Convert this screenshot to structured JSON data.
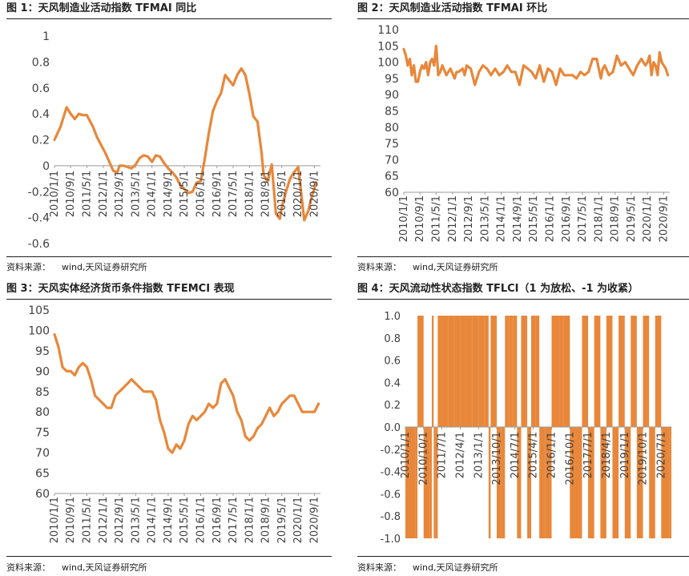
{
  "source_label": "资料来源：",
  "source_text": "wind,天风证券研究所",
  "colors": {
    "series": "#E8873A",
    "axis": "#999999",
    "tick_text": "#404040"
  },
  "chart_data": [
    {
      "id": "fig1",
      "type": "line",
      "title": "图 1：天风制造业活动指数 TFMAI 同比",
      "ylim": [
        -0.6,
        1
      ],
      "yticks": [
        -0.6,
        -0.4,
        -0.2,
        0,
        0.2,
        0.4,
        0.6,
        0.8,
        1
      ],
      "ytick_labels": [
        "-0.6",
        "-0.4",
        "-0.2",
        "0",
        "0.2",
        "0.4",
        "0.6",
        "0.8",
        "1"
      ],
      "xlim": [
        "2010-01-01",
        "2020-11-30"
      ],
      "xticks": [
        "2010/1/1",
        "2010/9/1",
        "2011/5/1",
        "2012/1/1",
        "2012/9/1",
        "2013/5/1",
        "2014/1/1",
        "2014/9/1",
        "2015/5/1",
        "2016/1/1",
        "2016/9/1",
        "2017/5/1",
        "2018/1/1",
        "2018/9/1",
        "2019/5/1",
        "2020/1/1",
        "2020/9/1"
      ],
      "x_axis_at_zero": true,
      "series": [
        {
          "x": [
            "2010-01",
            "2010-04",
            "2010-07",
            "2010-09",
            "2010-11",
            "2011-01",
            "2011-03",
            "2011-05",
            "2011-08",
            "2011-10",
            "2011-12",
            "2012-02",
            "2012-04",
            "2012-06",
            "2012-08",
            "2012-09",
            "2012-11",
            "2013-01",
            "2013-03",
            "2013-05",
            "2013-07",
            "2013-09",
            "2013-11",
            "2014-01",
            "2014-03",
            "2014-05",
            "2014-07",
            "2014-09",
            "2014-11",
            "2015-01",
            "2015-03",
            "2015-05",
            "2015-07",
            "2015-09",
            "2015-11",
            "2016-01",
            "2016-03",
            "2016-05",
            "2016-07",
            "2016-09",
            "2016-11",
            "2017-01",
            "2017-03",
            "2017-05",
            "2017-07",
            "2017-09",
            "2017-11",
            "2018-01",
            "2018-03",
            "2018-05",
            "2018-07",
            "2018-08",
            "2018-10",
            "2018-12",
            "2019-02",
            "2019-04",
            "2019-05",
            "2019-07",
            "2019-09",
            "2019-11",
            "2020-01",
            "2020-02",
            "2020-04",
            "2020-06",
            "2020-08",
            "2020-10"
          ],
          "y": [
            0.2,
            0.3,
            0.45,
            0.4,
            0.36,
            0.4,
            0.39,
            0.39,
            0.3,
            0.22,
            0.16,
            0.1,
            0.03,
            -0.04,
            -0.05,
            0,
            0,
            -0.01,
            -0.02,
            0.01,
            0.06,
            0.08,
            0.07,
            0.03,
            0.08,
            0.07,
            0.02,
            -0.02,
            -0.05,
            -0.09,
            -0.15,
            -0.18,
            -0.21,
            -0.2,
            -0.13,
            -0.12,
            0.05,
            0.25,
            0.42,
            0.5,
            0.56,
            0.7,
            0.66,
            0.62,
            0.7,
            0.75,
            0.7,
            0.55,
            0.38,
            0.34,
            0.1,
            -0.07,
            -0.12,
            0.01,
            -0.37,
            -0.41,
            -0.32,
            -0.2,
            -0.1,
            -0.05,
            -0.01,
            -0.15,
            -0.42,
            -0.35,
            -0.22,
            -0.13
          ]
        }
      ]
    },
    {
      "id": "fig2",
      "type": "line",
      "title": "图 2：天风制造业活动指数 TFMAI 环比",
      "ylim": [
        60,
        110
      ],
      "yticks": [
        60,
        65,
        70,
        75,
        80,
        85,
        90,
        95,
        100,
        105,
        110
      ],
      "ytick_labels": [
        "60",
        "65",
        "70",
        "75",
        "80",
        "85",
        "90",
        "95",
        "100",
        "105",
        "110"
      ],
      "xlim": [
        "2010-01-01",
        "2020-11-30"
      ],
      "xticks": [
        "2010/1/1",
        "2010/9/1",
        "2011/5/1",
        "2012/1/1",
        "2012/9/1",
        "2013/5/1",
        "2014/1/1",
        "2014/9/1",
        "2015/5/1",
        "2016/1/1",
        "2016/9/1",
        "2017/5/1",
        "2018/1/1",
        "2018/9/1",
        "2019/5/1",
        "2020/1/1",
        "2020/9/1"
      ],
      "series": [
        {
          "x": [
            "2010-01",
            "2010-02",
            "2010-03",
            "2010-04",
            "2010-05",
            "2010-06",
            "2010-07",
            "2010-08",
            "2010-09",
            "2010-10",
            "2010-11",
            "2010-12",
            "2011-01",
            "2011-02",
            "2011-03",
            "2011-04",
            "2011-05",
            "2011-06",
            "2011-07",
            "2011-08",
            "2011-10",
            "2011-12",
            "2012-02",
            "2012-03",
            "2012-04",
            "2012-06",
            "2012-07",
            "2012-08",
            "2012-10",
            "2012-12",
            "2013-02",
            "2013-04",
            "2013-06",
            "2013-08",
            "2013-10",
            "2013-12",
            "2014-02",
            "2014-04",
            "2014-06",
            "2014-08",
            "2014-10",
            "2014-12",
            "2015-02",
            "2015-04",
            "2015-06",
            "2015-08",
            "2015-10",
            "2015-12",
            "2016-02",
            "2016-04",
            "2016-06",
            "2016-08",
            "2016-10",
            "2016-12",
            "2017-02",
            "2017-04",
            "2017-06",
            "2017-08",
            "2017-10",
            "2017-12",
            "2018-02",
            "2018-03",
            "2018-04",
            "2018-06",
            "2018-08",
            "2018-10",
            "2018-12",
            "2019-02",
            "2019-04",
            "2019-06",
            "2019-08",
            "2019-10",
            "2019-12",
            "2020-01",
            "2020-02",
            "2020-03",
            "2020-04",
            "2020-05",
            "2020-06",
            "2020-07",
            "2020-08",
            "2020-09",
            "2020-10",
            "2020-11"
          ],
          "y": [
            104,
            102,
            99,
            101,
            96,
            99,
            94,
            94,
            97,
            99,
            98,
            100,
            96,
            100,
            101,
            99,
            105,
            96,
            97,
            99,
            96,
            98,
            95,
            97,
            97,
            98,
            96,
            99,
            98,
            93,
            97,
            99,
            98,
            96,
            98,
            96,
            97,
            99,
            97,
            97,
            93,
            99,
            98,
            97,
            95,
            99,
            94,
            98,
            97,
            93,
            98,
            96,
            96,
            96,
            95,
            97,
            96,
            97,
            101,
            101,
            95,
            98,
            99,
            96,
            97,
            102,
            99,
            100,
            98,
            96,
            99,
            101,
            99,
            100,
            102,
            96,
            100,
            99,
            96,
            103,
            100,
            99,
            98,
            96
          ]
        }
      ]
    },
    {
      "id": "fig3",
      "type": "line",
      "title": "图 3：天风实体经济货币条件指数 TFEMCI 表现",
      "ylim": [
        60,
        105
      ],
      "yticks": [
        60,
        65,
        70,
        75,
        80,
        85,
        90,
        95,
        100,
        105
      ],
      "ytick_labels": [
        "60",
        "65",
        "70",
        "75",
        "80",
        "85",
        "90",
        "95",
        "100",
        "105"
      ],
      "xlim": [
        "2010-01-01",
        "2020-11-30"
      ],
      "xticks": [
        "2010/1/1",
        "2010/9/1",
        "2011/5/1",
        "2012/1/1",
        "2012/9/1",
        "2013/5/1",
        "2014/1/1",
        "2014/9/1",
        "2015/5/1",
        "2016/1/1",
        "2016/9/1",
        "2017/5/1",
        "2018/1/1",
        "2018/9/1",
        "2019/5/1",
        "2020/1/1",
        "2020/9/1"
      ],
      "series": [
        {
          "x": [
            "2010-01",
            "2010-03",
            "2010-05",
            "2010-07",
            "2010-09",
            "2010-11",
            "2011-01",
            "2011-03",
            "2011-05",
            "2011-07",
            "2011-09",
            "2011-11",
            "2012-01",
            "2012-03",
            "2012-05",
            "2012-07",
            "2012-09",
            "2012-11",
            "2013-01",
            "2013-03",
            "2013-05",
            "2013-07",
            "2013-09",
            "2013-11",
            "2014-01",
            "2014-03",
            "2014-05",
            "2014-07",
            "2014-09",
            "2014-11",
            "2015-01",
            "2015-03",
            "2015-05",
            "2015-07",
            "2015-09",
            "2015-11",
            "2016-01",
            "2016-03",
            "2016-05",
            "2016-07",
            "2016-09",
            "2016-11",
            "2017-01",
            "2017-03",
            "2017-05",
            "2017-07",
            "2017-09",
            "2017-11",
            "2018-01",
            "2018-03",
            "2018-05",
            "2018-07",
            "2018-09",
            "2018-11",
            "2019-01",
            "2019-03",
            "2019-05",
            "2019-07",
            "2019-09",
            "2019-11",
            "2020-01",
            "2020-03",
            "2020-05",
            "2020-07",
            "2020-09",
            "2020-11"
          ],
          "y": [
            99,
            96,
            91,
            90,
            90,
            89,
            91,
            92,
            91,
            88,
            84,
            83,
            82,
            81,
            81,
            84,
            85,
            86,
            87,
            88,
            87,
            86,
            85,
            85,
            85,
            83,
            78,
            75,
            71,
            70,
            72,
            71,
            73,
            77,
            79,
            78,
            79,
            80,
            82,
            81,
            82,
            87,
            88,
            86,
            84,
            80,
            78,
            74,
            73,
            74,
            76,
            77,
            79,
            81,
            79,
            80,
            82,
            83,
            84,
            84,
            82,
            80,
            80,
            80,
            80,
            82
          ]
        }
      ]
    },
    {
      "id": "fig4",
      "type": "area",
      "title": "图 4：天风流动性状态指数 TFLCI（1 为放松、-1 为收紧）",
      "ylim": [
        -1,
        1
      ],
      "yticks": [
        -1.0,
        -0.8,
        -0.6,
        -0.4,
        -0.2,
        0.0,
        0.2,
        0.4,
        0.6,
        0.8,
        1.0
      ],
      "ytick_labels": [
        "-1.0",
        "-0.8",
        "-0.6",
        "-0.4",
        "-0.2",
        "0.0",
        "0.2",
        "0.4",
        "0.6",
        "0.8",
        "1.0"
      ],
      "xlim": [
        "2010-01-01",
        "2020-11-30"
      ],
      "xticks": [
        "2010/1/1",
        "2010/10/1",
        "2011/7/1",
        "2012/4/1",
        "2013/1/1",
        "2013/10/1",
        "2014/7/1",
        "2015/4/1",
        "2016/1/1",
        "2016/10/1",
        "2017/7/1",
        "2018/4/1",
        "2019/1/1",
        "2019/10/1",
        "2020/7/1"
      ],
      "x_axis_at_zero": true,
      "series": [
        {
          "x": [
            "2010-01",
            "2010-05",
            "2010-06",
            "2010-07",
            "2010-10",
            "2011-01",
            "2011-02",
            "2011-03",
            "2011-04",
            "2011-05",
            "2011-07",
            "2011-10",
            "2012-01",
            "2012-04",
            "2012-07",
            "2012-10",
            "2013-01",
            "2013-04",
            "2013-06",
            "2013-07",
            "2013-09",
            "2013-10",
            "2013-12",
            "2014-02",
            "2014-04",
            "2014-06",
            "2014-08",
            "2014-10",
            "2014-12",
            "2015-01",
            "2015-03",
            "2015-05",
            "2015-07",
            "2015-10",
            "2016-01",
            "2016-03",
            "2016-05",
            "2016-07",
            "2016-10",
            "2017-01",
            "2017-04",
            "2017-07",
            "2017-10",
            "2018-01",
            "2018-04",
            "2018-07",
            "2018-10",
            "2019-01",
            "2019-04",
            "2019-07",
            "2019-10",
            "2020-01",
            "2020-04",
            "2020-07",
            "2020-10",
            "2020-11"
          ],
          "y": [
            -1,
            -1,
            -1,
            1,
            -1,
            -1,
            1,
            -1,
            -1,
            1,
            1,
            1,
            1,
            1,
            1,
            1,
            1,
            1,
            -1,
            1,
            1,
            -1,
            -1,
            1,
            1,
            1,
            -1,
            1,
            1,
            -1,
            1,
            1,
            -1,
            -1,
            1,
            1,
            1,
            1,
            -1,
            -1,
            1,
            -1,
            1,
            -1,
            1,
            -1,
            1,
            -1,
            1,
            -1,
            1,
            -1,
            1,
            -1,
            -1,
            -1
          ]
        }
      ]
    }
  ]
}
